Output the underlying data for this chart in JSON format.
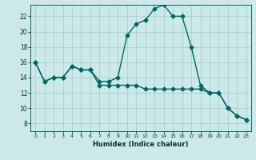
{
  "xlabel": "Humidex (Indice chaleur)",
  "xlim": [
    -0.5,
    23.5
  ],
  "ylim": [
    7,
    23.5
  ],
  "yticks": [
    8,
    10,
    12,
    14,
    16,
    18,
    20,
    22
  ],
  "xticks": [
    0,
    1,
    2,
    3,
    4,
    5,
    6,
    7,
    8,
    9,
    10,
    11,
    12,
    13,
    14,
    15,
    16,
    17,
    18,
    19,
    20,
    21,
    22,
    23
  ],
  "bg_color": "#cce8e8",
  "grid_color": "#99cccc",
  "line_color": "#006666",
  "line1_x": [
    0,
    1,
    2,
    3,
    4,
    5,
    6,
    7,
    8,
    9,
    10,
    11,
    12,
    13,
    14,
    15,
    16,
    17,
    18,
    19,
    20,
    21,
    22,
    23
  ],
  "line1_y": [
    16,
    13.5,
    14,
    14,
    15.5,
    15,
    15,
    13.5,
    13.5,
    14,
    19.5,
    21,
    21.5,
    23,
    23.5,
    22,
    22,
    18,
    13,
    12,
    12,
    10,
    9,
    8.5
  ],
  "line2_x": [
    0,
    1,
    2,
    3,
    4,
    5,
    6,
    7,
    8,
    9,
    10,
    11,
    12,
    13,
    14,
    15,
    16,
    17,
    18,
    19,
    20,
    21,
    22,
    23
  ],
  "line2_y": [
    16,
    13.5,
    14,
    14,
    15.5,
    15,
    15,
    13,
    13,
    13,
    13,
    13,
    12.5,
    12.5,
    12.5,
    12.5,
    12.5,
    12.5,
    12.5,
    12,
    12,
    10,
    9,
    8.5
  ],
  "marker_size": 2.5,
  "line_width": 1.0
}
